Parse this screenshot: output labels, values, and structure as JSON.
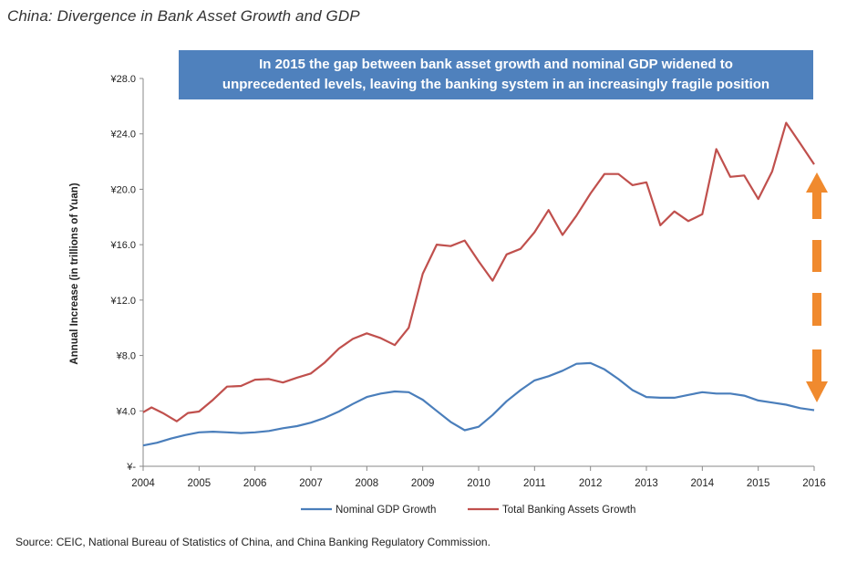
{
  "title": "China: Divergence in Bank Asset Growth and GDP",
  "callout": {
    "line1": "In 2015 the gap between bank asset growth and nominal GDP widened to",
    "line2": "unprecedented levels, leaving the banking system in an increasingly fragile position"
  },
  "source": "Source: CEIC, National Bureau of Statistics of China, and China Banking Regulatory Commission.",
  "colors": {
    "gdp": "#4a7ebb",
    "banking": "#c0504d",
    "arrow": "#f08a2e",
    "callout_bg": "#4f81bd"
  },
  "chart_data": {
    "type": "line",
    "title": "China: Divergence in Bank Asset Growth and GDP",
    "xlabel": "",
    "ylabel": "Annual Increase (in trillions of Yuan)",
    "ylim": [
      0,
      28
    ],
    "xlim": [
      2004,
      2016
    ],
    "yticks": [
      {
        "value": 0,
        "label": "¥-"
      },
      {
        "value": 4,
        "label": "¥4.0"
      },
      {
        "value": 8,
        "label": "¥8.0"
      },
      {
        "value": 12,
        "label": "¥12.0"
      },
      {
        "value": 16,
        "label": "¥16.0"
      },
      {
        "value": 20,
        "label": "¥20.0"
      },
      {
        "value": 24,
        "label": "¥24.0"
      },
      {
        "value": 28,
        "label": "¥28.0"
      }
    ],
    "xticks": [
      "2004",
      "2005",
      "2006",
      "2007",
      "2008",
      "2009",
      "2010",
      "2011",
      "2012",
      "2013",
      "2014",
      "2015",
      "2016"
    ],
    "legend_position": "bottom",
    "grid": false,
    "series": [
      {
        "name": "Nominal GDP Growth",
        "color": "#4a7ebb",
        "points": [
          [
            2004.0,
            1.5
          ],
          [
            2004.25,
            1.7
          ],
          [
            2004.5,
            2.0
          ],
          [
            2004.75,
            2.25
          ],
          [
            2005.0,
            2.45
          ],
          [
            2005.25,
            2.5
          ],
          [
            2005.5,
            2.45
          ],
          [
            2005.75,
            2.4
          ],
          [
            2006.0,
            2.45
          ],
          [
            2006.25,
            2.55
          ],
          [
            2006.5,
            2.75
          ],
          [
            2006.75,
            2.9
          ],
          [
            2007.0,
            3.15
          ],
          [
            2007.25,
            3.5
          ],
          [
            2007.5,
            3.95
          ],
          [
            2007.75,
            4.5
          ],
          [
            2008.0,
            5.0
          ],
          [
            2008.25,
            5.25
          ],
          [
            2008.5,
            5.4
          ],
          [
            2008.75,
            5.35
          ],
          [
            2009.0,
            4.8
          ],
          [
            2009.25,
            4.0
          ],
          [
            2009.5,
            3.2
          ],
          [
            2009.75,
            2.6
          ],
          [
            2010.0,
            2.85
          ],
          [
            2010.25,
            3.7
          ],
          [
            2010.5,
            4.7
          ],
          [
            2010.75,
            5.5
          ],
          [
            2011.0,
            6.2
          ],
          [
            2011.25,
            6.5
          ],
          [
            2011.5,
            6.9
          ],
          [
            2011.75,
            7.4
          ],
          [
            2012.0,
            7.45
          ],
          [
            2012.25,
            7.0
          ],
          [
            2012.5,
            6.3
          ],
          [
            2012.75,
            5.5
          ],
          [
            2013.0,
            5.0
          ],
          [
            2013.25,
            4.95
          ],
          [
            2013.5,
            4.95
          ],
          [
            2013.75,
            5.15
          ],
          [
            2014.0,
            5.35
          ],
          [
            2014.25,
            5.25
          ],
          [
            2014.5,
            5.25
          ],
          [
            2014.75,
            5.1
          ],
          [
            2015.0,
            4.75
          ],
          [
            2015.25,
            4.6
          ],
          [
            2015.5,
            4.45
          ],
          [
            2015.75,
            4.2
          ],
          [
            2016.0,
            4.05
          ]
        ]
      },
      {
        "name": "Total Banking Assets Growth",
        "color": "#c0504d",
        "points": [
          [
            2004.0,
            3.9
          ],
          [
            2004.15,
            4.25
          ],
          [
            2004.35,
            3.85
          ],
          [
            2004.6,
            3.25
          ],
          [
            2004.8,
            3.85
          ],
          [
            2005.0,
            3.95
          ],
          [
            2005.25,
            4.8
          ],
          [
            2005.5,
            5.75
          ],
          [
            2005.75,
            5.8
          ],
          [
            2006.0,
            6.25
          ],
          [
            2006.25,
            6.3
          ],
          [
            2006.5,
            6.05
          ],
          [
            2006.75,
            6.4
          ],
          [
            2007.0,
            6.7
          ],
          [
            2007.25,
            7.5
          ],
          [
            2007.5,
            8.5
          ],
          [
            2007.75,
            9.2
          ],
          [
            2008.0,
            9.6
          ],
          [
            2008.25,
            9.25
          ],
          [
            2008.5,
            8.75
          ],
          [
            2008.75,
            10.0
          ],
          [
            2009.0,
            13.9
          ],
          [
            2009.25,
            16.0
          ],
          [
            2009.5,
            15.9
          ],
          [
            2009.75,
            16.3
          ],
          [
            2010.0,
            14.8
          ],
          [
            2010.25,
            13.4
          ],
          [
            2010.5,
            15.3
          ],
          [
            2010.75,
            15.7
          ],
          [
            2011.0,
            16.9
          ],
          [
            2011.25,
            18.5
          ],
          [
            2011.5,
            16.7
          ],
          [
            2011.75,
            18.1
          ],
          [
            2012.0,
            19.7
          ],
          [
            2012.25,
            21.1
          ],
          [
            2012.5,
            21.1
          ],
          [
            2012.75,
            20.3
          ],
          [
            2013.0,
            20.5
          ],
          [
            2013.25,
            17.4
          ],
          [
            2013.5,
            18.4
          ],
          [
            2013.75,
            17.7
          ],
          [
            2014.0,
            18.2
          ],
          [
            2014.25,
            22.9
          ],
          [
            2014.5,
            20.9
          ],
          [
            2014.75,
            21.0
          ],
          [
            2015.0,
            19.3
          ],
          [
            2015.25,
            21.3
          ],
          [
            2015.5,
            24.8
          ],
          [
            2015.75,
            23.3
          ],
          [
            2016.0,
            21.8
          ]
        ]
      }
    ]
  }
}
